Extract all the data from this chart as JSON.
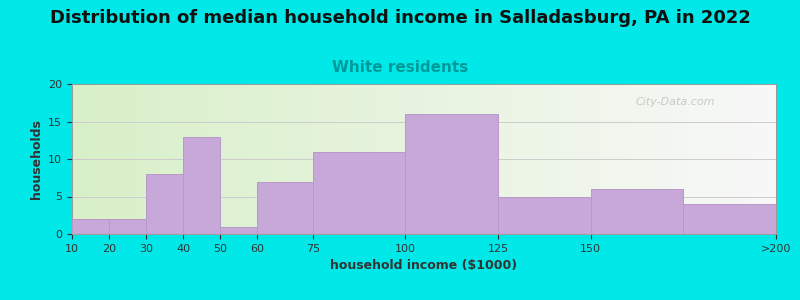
{
  "title": "Distribution of median household income in Salladasburg, PA in 2022",
  "subtitle": "White residents",
  "xlabel": "household income ($1000)",
  "ylabel": "households",
  "bar_labels": [
    "10",
    "20",
    "30",
    "40",
    "50",
    "60",
    "75",
    "100",
    "125",
    "150",
    ">200"
  ],
  "bar_values": [
    2,
    2,
    8,
    13,
    1,
    7,
    11,
    16,
    5,
    6,
    4
  ],
  "bar_color": "#c8a8d8",
  "bar_edge_color": "#b898c8",
  "ylim": [
    0,
    20
  ],
  "yticks": [
    0,
    5,
    10,
    15,
    20
  ],
  "background_color": "#00e8e8",
  "plot_bg_left": "#d8f0c8",
  "plot_bg_right": "#f8f8f8",
  "title_fontsize": 13,
  "subtitle_fontsize": 11,
  "subtitle_color": "#009999",
  "axis_label_fontsize": 9,
  "tick_fontsize": 8,
  "watermark": "City-Data.com",
  "x_positions": [
    10,
    20,
    30,
    40,
    50,
    60,
    75,
    100,
    125,
    150,
    175
  ],
  "x_widths": [
    10,
    10,
    10,
    10,
    10,
    15,
    25,
    25,
    25,
    25,
    25
  ],
  "xtick_positions": [
    10,
    20,
    30,
    40,
    50,
    60,
    75,
    100,
    125,
    150,
    200
  ],
  "xlim": [
    10,
    200
  ]
}
